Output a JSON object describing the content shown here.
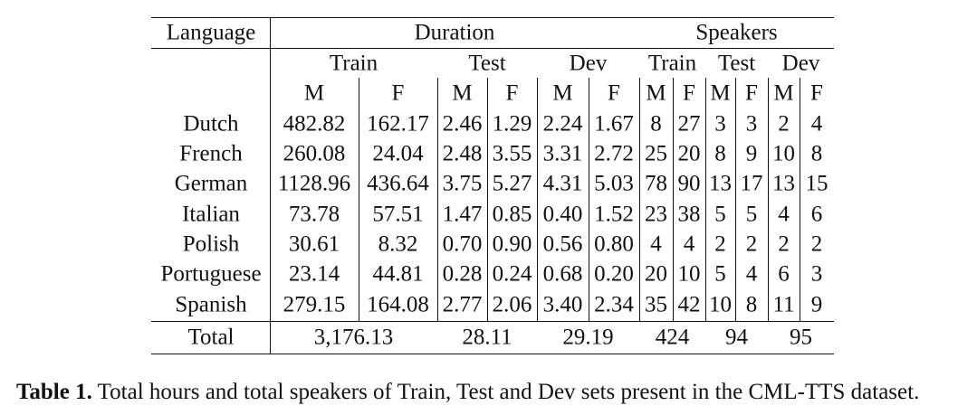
{
  "table": {
    "header": {
      "language": "Language",
      "duration": "Duration",
      "speakers": "Speakers",
      "splits": [
        "Train",
        "Test",
        "Dev"
      ],
      "genders": [
        "M",
        "F"
      ]
    },
    "rows": [
      {
        "language": "Dutch",
        "duration": [
          "482.82",
          "162.17",
          "2.46",
          "1.29",
          "2.24",
          "1.67"
        ],
        "speakers": [
          "8",
          "27",
          "3",
          "3",
          "2",
          "4"
        ]
      },
      {
        "language": "French",
        "duration": [
          "260.08",
          "24.04",
          "2.48",
          "3.55",
          "3.31",
          "2.72"
        ],
        "speakers": [
          "25",
          "20",
          "8",
          "9",
          "10",
          "8"
        ]
      },
      {
        "language": "German",
        "duration": [
          "1128.96",
          "436.64",
          "3.75",
          "5.27",
          "4.31",
          "5.03"
        ],
        "speakers": [
          "78",
          "90",
          "13",
          "17",
          "13",
          "15"
        ]
      },
      {
        "language": "Italian",
        "duration": [
          "73.78",
          "57.51",
          "1.47",
          "0.85",
          "0.40",
          "1.52"
        ],
        "speakers": [
          "23",
          "38",
          "5",
          "5",
          "4",
          "6"
        ]
      },
      {
        "language": "Polish",
        "duration": [
          "30.61",
          "8.32",
          "0.70",
          "0.90",
          "0.56",
          "0.80"
        ],
        "speakers": [
          "4",
          "4",
          "2",
          "2",
          "2",
          "2"
        ]
      },
      {
        "language": "Portuguese",
        "duration": [
          "23.14",
          "44.81",
          "0.28",
          "0.24",
          "0.68",
          "0.20"
        ],
        "speakers": [
          "20",
          "10",
          "5",
          "4",
          "6",
          "3"
        ]
      },
      {
        "language": "Spanish",
        "duration": [
          "279.15",
          "164.08",
          "2.77",
          "2.06",
          "3.40",
          "2.34"
        ],
        "speakers": [
          "35",
          "42",
          "10",
          "8",
          "11",
          "9"
        ]
      }
    ],
    "total": {
      "label": "Total",
      "duration": [
        "3,176.13",
        "28.11",
        "29.19"
      ],
      "speakers": [
        "424",
        "94",
        "95"
      ]
    }
  },
  "caption": {
    "label": "Table 1.",
    "text": "Total hours and total speakers of Train, Test and Dev sets present in the CML-TTS dataset."
  }
}
